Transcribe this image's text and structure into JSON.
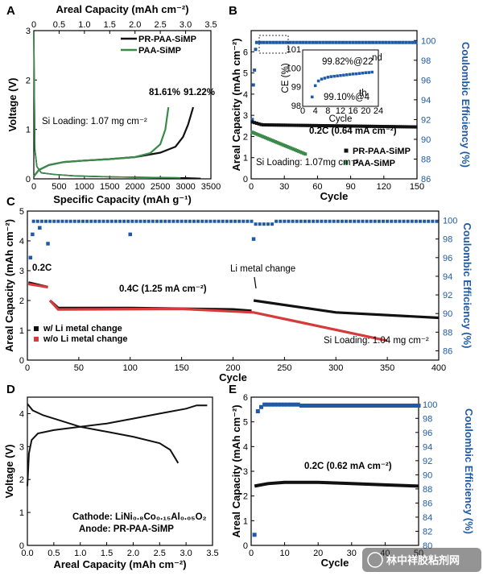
{
  "colors": {
    "black": "#111111",
    "green": "#3a8a4a",
    "blue": "#1f5aa6",
    "red": "#d63a3a",
    "white": "#ffffff"
  },
  "watermark": "林中祥胶粘剂网",
  "chart_data": [
    {
      "panel": "A",
      "type": "line",
      "xlabel": "Specific Capacity (mAh g⁻¹)",
      "x2label": "Areal Capacity (mAh cm⁻²)",
      "ylabel": "Voltage (V)",
      "xlim": [
        0,
        3500
      ],
      "x2lim": [
        0,
        3.5
      ],
      "ylim": [
        0,
        3
      ],
      "xticks": [
        "0",
        "500",
        "1000",
        "1500",
        "2000",
        "2500",
        "3000",
        "3500"
      ],
      "x2ticks": [
        "0",
        "0.5",
        "1.0",
        "1.5",
        "2.0",
        "2.5",
        "3.0",
        "3.5"
      ],
      "yticks": [
        "0",
        "1",
        "2",
        "3"
      ],
      "annotations": [
        "Si Loading: 1.07 mg cm⁻²",
        "81.61%",
        "91.22%"
      ],
      "series": [
        {
          "name": "PR-PAA-SiMP",
          "color": "#111111",
          "discharge": [
            [
              0,
              2.95
            ],
            [
              20,
              0.6
            ],
            [
              60,
              0.25
            ],
            [
              150,
              0.12
            ],
            [
              400,
              0.09
            ],
            [
              800,
              0.06
            ],
            [
              1500,
              0.04
            ],
            [
              2200,
              0.03
            ],
            [
              3000,
              0.02
            ],
            [
              3300,
              0.01
            ]
          ],
          "charge": [
            [
              0,
              0.05
            ],
            [
              100,
              0.18
            ],
            [
              300,
              0.28
            ],
            [
              600,
              0.34
            ],
            [
              1000,
              0.37
            ],
            [
              1500,
              0.4
            ],
            [
              2000,
              0.44
            ],
            [
              2500,
              0.53
            ],
            [
              2800,
              0.65
            ],
            [
              2950,
              0.85
            ],
            [
              3050,
              1.1
            ],
            [
              3150,
              1.45
            ]
          ]
        },
        {
          "name": "PAA-SiMP",
          "color": "#3a8a4a",
          "discharge": [
            [
              0,
              2.95
            ],
            [
              20,
              0.6
            ],
            [
              60,
              0.25
            ],
            [
              150,
              0.12
            ],
            [
              400,
              0.09
            ],
            [
              800,
              0.06
            ],
            [
              1500,
              0.04
            ],
            [
              2200,
              0.03
            ],
            [
              2900,
              0.02
            ]
          ],
          "charge": [
            [
              0,
              0.05
            ],
            [
              100,
              0.18
            ],
            [
              300,
              0.28
            ],
            [
              600,
              0.34
            ],
            [
              1000,
              0.37
            ],
            [
              1500,
              0.4
            ],
            [
              2000,
              0.44
            ],
            [
              2300,
              0.52
            ],
            [
              2500,
              0.7
            ],
            [
              2600,
              1.0
            ],
            [
              2660,
              1.45
            ]
          ]
        }
      ]
    },
    {
      "panel": "B",
      "type": "scatter",
      "xlabel": "Cycle",
      "ylabel": "Areal Capacity (mAh cm⁻²)",
      "y2label": "Coulombic Efficiency (%)",
      "xlim": [
        0,
        150
      ],
      "ylim": [
        0,
        7
      ],
      "y2lim": [
        86,
        101
      ],
      "xticks": [
        "0",
        "30",
        "60",
        "90",
        "120",
        "150"
      ],
      "yticks": [
        "0",
        "1",
        "2",
        "3",
        "4",
        "5",
        "6"
      ],
      "y2ticks": [
        "86",
        "88",
        "90",
        "92",
        "94",
        "96",
        "98",
        "100"
      ],
      "annotations": [
        "0.2C (0.64 mA cm⁻²)",
        "Si Loading: 1.07mg cm⁻²"
      ],
      "legend": [
        "PR-PAA-SiMP",
        "PAA-SiMP"
      ],
      "series": [
        {
          "name": "PR-PAA-SiMP capacity",
          "color": "#111111",
          "x_range": [
            1,
            150
          ],
          "values_start": 2.7,
          "values_mid": 2.55,
          "values_end": 2.45
        },
        {
          "name": "PAA-SiMP capacity",
          "color": "#3a8a4a",
          "x_range": [
            1,
            50
          ],
          "values_start": 2.2,
          "values_end": 1.15
        },
        {
          "name": "CE",
          "color": "#1f5aa6",
          "first_points": [
            [
              1,
              92
            ],
            [
              2,
              95.5
            ],
            [
              3,
              97
            ],
            [
              4,
              99.1
            ]
          ],
          "plateau": 99.8
        }
      ],
      "inset": {
        "xlabel": "Cycle",
        "ylabel": "CE (%)",
        "xlim": [
          0,
          24
        ],
        "ylim": [
          98,
          101
        ],
        "xticks": [
          "0",
          "4",
          "8",
          "12",
          "16",
          "20",
          "24"
        ],
        "yticks": [
          "98",
          "99",
          "100",
          "101"
        ],
        "labels": [
          "99.82%@22",
          "nd",
          "99.10%@4",
          "th"
        ],
        "points": [
          [
            1,
            95
          ],
          [
            2,
            97.5
          ],
          [
            3,
            98.5
          ],
          [
            4,
            99.1
          ],
          [
            5,
            99.35
          ],
          [
            6,
            99.45
          ],
          [
            7,
            99.5
          ],
          [
            8,
            99.55
          ],
          [
            9,
            99.58
          ],
          [
            10,
            99.6
          ],
          [
            11,
            99.62
          ],
          [
            12,
            99.64
          ],
          [
            13,
            99.66
          ],
          [
            14,
            99.68
          ],
          [
            15,
            99.7
          ],
          [
            16,
            99.72
          ],
          [
            17,
            99.73
          ],
          [
            18,
            99.75
          ],
          [
            19,
            99.77
          ],
          [
            20,
            99.79
          ],
          [
            21,
            99.8
          ],
          [
            22,
            99.82
          ]
        ]
      }
    },
    {
      "panel": "C",
      "type": "scatter",
      "xlabel": "Cycle",
      "ylabel": "Areal Capacity (mAh cm⁻²)",
      "y2label": "Coulombic Efficiency (%)",
      "xlim": [
        0,
        400
      ],
      "ylim": [
        0,
        5
      ],
      "y2lim": [
        85,
        101
      ],
      "xticks": [
        "0",
        "50",
        "100",
        "150",
        "200",
        "250",
        "300",
        "350",
        "400"
      ],
      "yticks": [
        "0",
        "1",
        "2",
        "3",
        "4",
        "5"
      ],
      "y2ticks": [
        "86",
        "88",
        "90",
        "92",
        "94",
        "96",
        "98",
        "100"
      ],
      "annotations": [
        "0.2C",
        "0.4C (1.25 mA cm⁻²)",
        "Li metal change",
        "Si Loading: 1.04 mg cm⁻²"
      ],
      "legend": [
        "w/ Li metal change",
        "w/o Li metal change"
      ],
      "series": [
        {
          "name": "w/ Li metal change",
          "color": "#111111",
          "segments": [
            [
              [
                1,
                2.6
              ],
              [
                20,
                2.45
              ]
            ],
            [
              [
                22,
                2.0
              ],
              [
                30,
                1.75
              ],
              [
                100,
                1.75
              ],
              [
                200,
                1.7
              ],
              [
                218,
                1.65
              ]
            ],
            [
              [
                220,
                2.0
              ],
              [
                300,
                1.6
              ],
              [
                400,
                1.42
              ]
            ]
          ]
        },
        {
          "name": "w/o Li metal change",
          "color": "#d63a3a",
          "segments": [
            [
              [
                1,
                2.55
              ],
              [
                20,
                2.45
              ]
            ],
            [
              [
                22,
                2.0
              ],
              [
                30,
                1.7
              ],
              [
                150,
                1.72
              ],
              [
                220,
                1.6
              ],
              [
                350,
                0.65
              ]
            ]
          ]
        },
        {
          "name": "CE",
          "color": "#1f5aa6",
          "outliers": [
            [
              3,
              96
            ],
            [
              5,
              98.5
            ],
            [
              12,
              99.2
            ],
            [
              20,
              97.5
            ],
            [
              100,
              98.5
            ],
            [
              220,
              98
            ]
          ],
          "plateau": 99.9
        }
      ]
    },
    {
      "panel": "D",
      "type": "line",
      "xlabel": "Areal Capacity (mAh cm⁻²)",
      "ylabel": "Voltage (V)",
      "xlim": [
        0,
        3.5
      ],
      "ylim": [
        0,
        4.5
      ],
      "xticks": [
        "0.0",
        "0.5",
        "1.0",
        "1.5",
        "2.0",
        "2.5",
        "3.0",
        "3.5"
      ],
      "yticks": [
        "0",
        "1",
        "2",
        "3",
        "4"
      ],
      "annotations": [
        "Cathode: LiNi₀.₈Co₀.₁₅Al₀.₀₅O₂",
        "Anode: PR-PAA-SiMP"
      ],
      "series": [
        {
          "name": "charge",
          "color": "#111111",
          "points": [
            [
              0,
              1.8
            ],
            [
              0.03,
              2.8
            ],
            [
              0.08,
              3.2
            ],
            [
              0.2,
              3.4
            ],
            [
              0.5,
              3.5
            ],
            [
              1.0,
              3.6
            ],
            [
              1.5,
              3.7
            ],
            [
              2.0,
              3.85
            ],
            [
              2.5,
              4.0
            ],
            [
              3.0,
              4.15
            ],
            [
              3.2,
              4.25
            ],
            [
              3.4,
              4.25
            ]
          ]
        },
        {
          "name": "discharge",
          "color": "#111111",
          "points": [
            [
              0,
              4.3
            ],
            [
              0.1,
              4.1
            ],
            [
              0.3,
              3.95
            ],
            [
              0.6,
              3.8
            ],
            [
              1.0,
              3.6
            ],
            [
              1.5,
              3.45
            ],
            [
              2.0,
              3.3
            ],
            [
              2.5,
              3.1
            ],
            [
              2.7,
              2.9
            ],
            [
              2.85,
              2.5
            ]
          ]
        }
      ]
    },
    {
      "panel": "E",
      "type": "scatter",
      "xlabel": "Cycle",
      "ylabel": "Areal Capacity (mAh cm⁻²)",
      "y2label": "Coulombic Efficiency (%)",
      "xlim": [
        0,
        50
      ],
      "ylim": [
        0,
        6
      ],
      "y2lim": [
        80,
        101
      ],
      "xticks": [
        "0",
        "10",
        "20",
        "30",
        "40",
        "50"
      ],
      "yticks": [
        "0",
        "1",
        "2",
        "3",
        "4",
        "5",
        "6"
      ],
      "y2ticks": [
        "80",
        "82",
        "84",
        "86",
        "88",
        "90",
        "92",
        "94",
        "96",
        "98",
        "100"
      ],
      "annotations": [
        "0.2C (0.62 mA cm⁻²)"
      ],
      "series": [
        {
          "name": "capacity",
          "color": "#111111",
          "points": [
            [
              1,
              2.4
            ],
            [
              5,
              2.5
            ],
            [
              10,
              2.55
            ],
            [
              15,
              2.55
            ],
            [
              20,
              2.55
            ],
            [
              30,
              2.5
            ],
            [
              40,
              2.45
            ],
            [
              50,
              2.4
            ]
          ]
        },
        {
          "name": "CE",
          "color": "#1f5aa6",
          "first_points": [
            [
              1,
              81.5
            ],
            [
              2,
              99.0
            ],
            [
              3,
              99.6
            ]
          ],
          "plateau": 99.8
        }
      ]
    }
  ]
}
